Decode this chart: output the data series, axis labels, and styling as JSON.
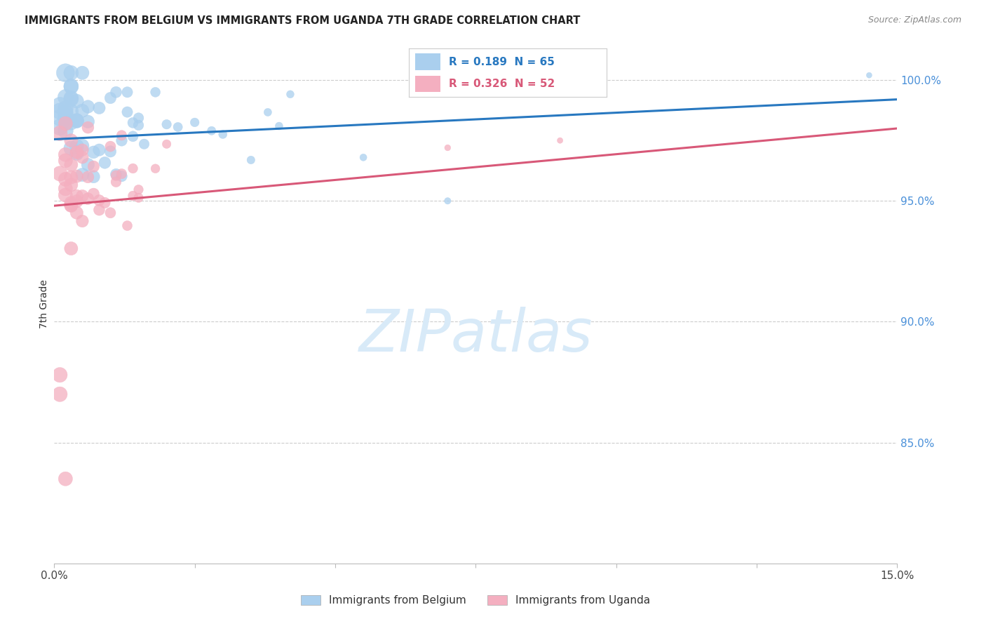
{
  "title": "IMMIGRANTS FROM BELGIUM VS IMMIGRANTS FROM UGANDA 7TH GRADE CORRELATION CHART",
  "source": "Source: ZipAtlas.com",
  "ylabel": "7th Grade",
  "xlim": [
    0.0,
    0.15
  ],
  "ylim": [
    0.8,
    1.015
  ],
  "belgium_R": 0.189,
  "belgium_N": 65,
  "uganda_R": 0.326,
  "uganda_N": 52,
  "belgium_color": "#aacfee",
  "uganda_color": "#f4afc0",
  "belgium_line_color": "#2878c0",
  "uganda_line_color": "#d85878",
  "background_color": "#ffffff",
  "grid_color": "#cccccc",
  "ytick_color": "#4a90d9",
  "title_color": "#222222",
  "source_color": "#888888",
  "watermark_color": "#d8eaf8",
  "legend_text_color_blue": "#2878c0",
  "legend_text_color_pink": "#d85878",
  "legend_label_color": "#333333"
}
